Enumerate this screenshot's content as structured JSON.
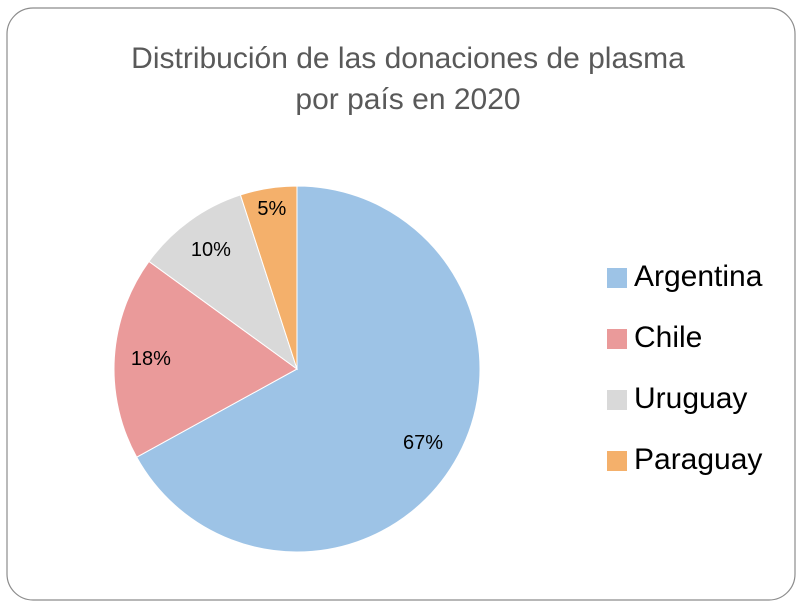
{
  "chart_data": {
    "type": "pie",
    "title": [
      "Distribución de las donaciones de plasma",
      "por país en 2020"
    ],
    "categories": [
      "Argentina",
      "Chile",
      "Uruguay",
      "Paraguay"
    ],
    "values": [
      67,
      18,
      10,
      5
    ],
    "value_labels": [
      "67%",
      "18%",
      "10%",
      "5%"
    ],
    "colors": [
      "#9dc3e6",
      "#ea9a9a",
      "#d9d9d9",
      "#f4b06b"
    ],
    "legend": "right"
  }
}
